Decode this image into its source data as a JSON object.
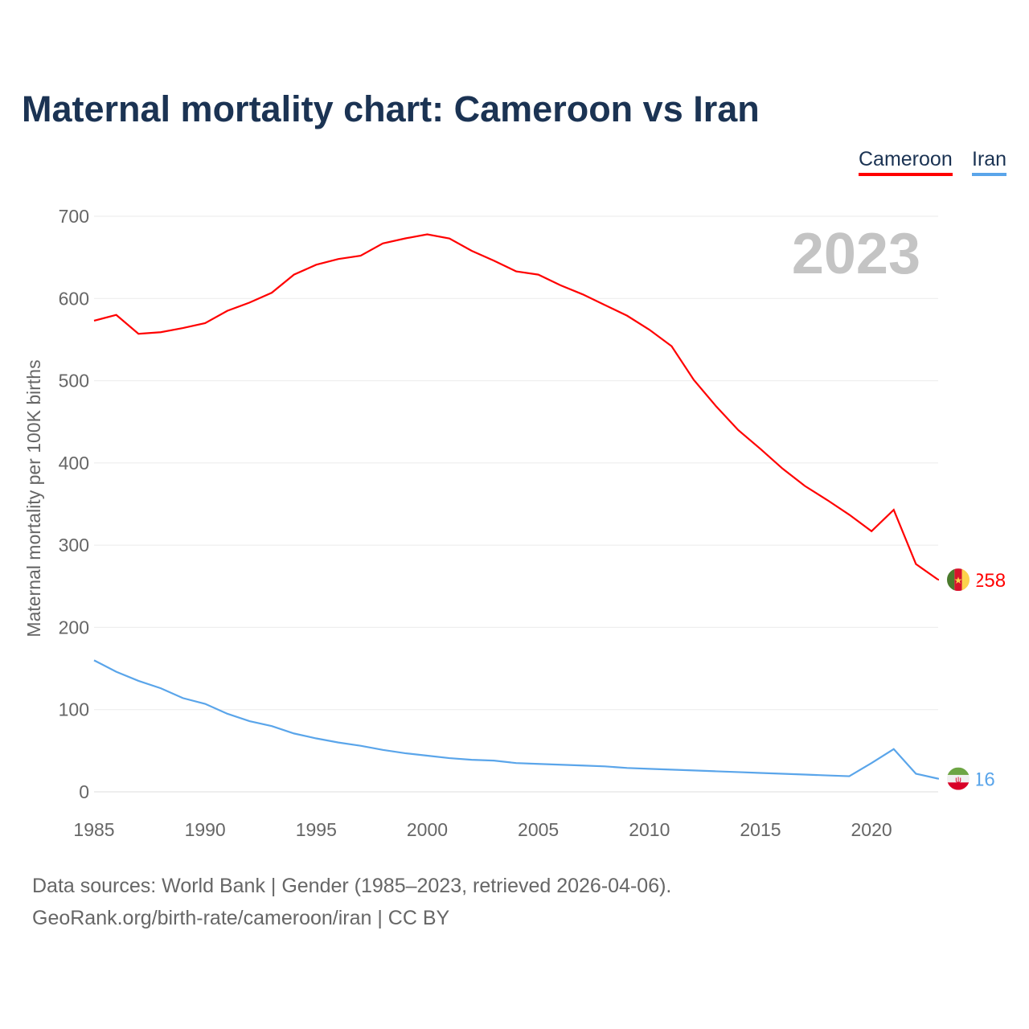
{
  "chart_data": {
    "type": "line",
    "title": "Maternal mortality chart: Cameroon vs Iran",
    "ylabel": "Maternal mortality per 100K births",
    "xlabel": "",
    "xlim": [
      1985,
      2023
    ],
    "ylim": [
      0,
      700
    ],
    "yticks": [
      0,
      100,
      200,
      300,
      400,
      500,
      600,
      700
    ],
    "xticks": [
      1985,
      1990,
      1995,
      2000,
      2005,
      2010,
      2015,
      2020
    ],
    "year_watermark": "2023",
    "grid": true,
    "legend": "top-right",
    "x": [
      1985,
      1986,
      1987,
      1988,
      1989,
      1990,
      1991,
      1992,
      1993,
      1994,
      1995,
      1996,
      1997,
      1998,
      1999,
      2000,
      2001,
      2002,
      2003,
      2004,
      2005,
      2006,
      2007,
      2008,
      2009,
      2010,
      2011,
      2012,
      2013,
      2014,
      2015,
      2016,
      2017,
      2018,
      2019,
      2020,
      2021,
      2022,
      2023
    ],
    "series": [
      {
        "name": "Cameroon",
        "color": "#ff0000",
        "end_label": "258",
        "values": [
          573,
          580,
          557,
          559,
          564,
          570,
          585,
          595,
          607,
          629,
          641,
          648,
          652,
          667,
          673,
          678,
          673,
          658,
          646,
          633,
          629,
          616,
          605,
          592,
          579,
          562,
          542,
          501,
          469,
          440,
          417,
          393,
          372,
          355,
          337,
          317,
          343,
          277,
          258
        ]
      },
      {
        "name": "Iran",
        "color": "#5aa5ea",
        "end_label": "16",
        "values": [
          160,
          146,
          135,
          126,
          114,
          107,
          95,
          86,
          80,
          71,
          65,
          60,
          56,
          51,
          47,
          44,
          41,
          39,
          38,
          35,
          34,
          33,
          32,
          31,
          29,
          28,
          27,
          26,
          25,
          24,
          23,
          22,
          21,
          20,
          19,
          35,
          52,
          22,
          16
        ]
      }
    ]
  },
  "footer": {
    "line1": "Data sources: World Bank | Gender (1985–2023, retrieved 2026-04-06).",
    "line2": "GeoRank.org/birth-rate/cameroon/iran | CC BY"
  }
}
